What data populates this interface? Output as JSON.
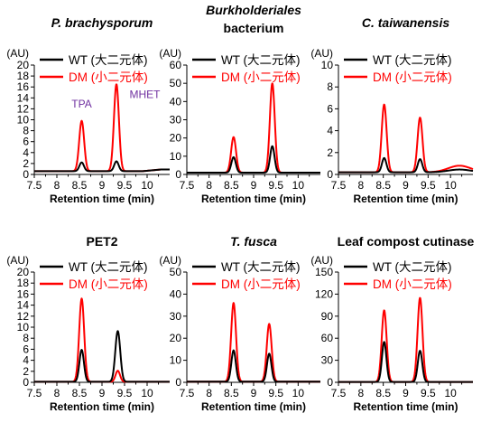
{
  "chart_data": [
    {
      "type": "line",
      "title": "P. brachysporum",
      "title_italic": true,
      "ylabel": "(AU)",
      "xlabel": "Retention time (min)",
      "xlim": [
        7.5,
        10.5
      ],
      "xticks": [
        "7.5",
        "8",
        "8.5",
        "9",
        "9.5",
        "10"
      ],
      "ylim": [
        0,
        20
      ],
      "yticks": [
        "0",
        "2",
        "4",
        "6",
        "8",
        "10",
        "12",
        "14",
        "16",
        "18",
        "20"
      ],
      "legend": {
        "position": "top-right",
        "entries": [
          "WT (大二元体)",
          "DM (小二元体)"
        ]
      },
      "annotations": [
        {
          "text": "TPA",
          "x": 8.55,
          "y": 12.2
        },
        {
          "text": "MHET",
          "x": 9.95,
          "y": 14.0
        }
      ],
      "series": [
        {
          "name": "WT (大二元体)",
          "color": "#000000",
          "baseline": 0.6,
          "tail": 0.9,
          "peaks": [
            [
              8.55,
              2.2,
              0.05
            ],
            [
              9.32,
              2.4,
              0.05
            ]
          ]
        },
        {
          "name": "DM (小二元体)",
          "color": "#ff0000",
          "baseline": 0.6,
          "tail": 0.9,
          "peaks": [
            [
              8.55,
              9.8,
              0.055
            ],
            [
              9.32,
              16.5,
              0.055
            ]
          ]
        }
      ]
    },
    {
      "type": "line",
      "title": "Burkholderiales",
      "title_line2": "bacterium",
      "title_italic": true,
      "title_line2_italic": false,
      "ylabel": "(AU)",
      "xlabel": "Retention time (min)",
      "xlim": [
        7.5,
        10.5
      ],
      "xticks": [
        "7.5",
        "8",
        "8.5",
        "9",
        "9.5",
        "10"
      ],
      "ylim": [
        0,
        60
      ],
      "yticks": [
        "0",
        "10",
        "20",
        "30",
        "40",
        "50",
        "60"
      ],
      "legend": {
        "position": "top-right",
        "entries": [
          "WT (大二元体)",
          "DM (小二元体)"
        ]
      },
      "series": [
        {
          "name": "WT (大二元体)",
          "color": "#000000",
          "baseline": 1.0,
          "tail": 1.0,
          "peaks": [
            [
              8.55,
              9.5,
              0.05
            ],
            [
              9.42,
              15.5,
              0.05
            ]
          ]
        },
        {
          "name": "DM (小二元体)",
          "color": "#ff0000",
          "baseline": 1.0,
          "tail": 1.0,
          "peaks": [
            [
              8.55,
              20.5,
              0.055
            ],
            [
              9.42,
              50.0,
              0.055
            ]
          ]
        }
      ]
    },
    {
      "type": "line",
      "title": "C. taiwanensis",
      "title_italic": true,
      "ylabel": "(AU)",
      "xlabel": "Retention time (min)",
      "xlim": [
        7.5,
        10.5
      ],
      "xticks": [
        "7.5",
        "8",
        "8.5",
        "9",
        "9.5",
        "10"
      ],
      "ylim": [
        0,
        10
      ],
      "yticks": [
        "0",
        "2",
        "4",
        "6",
        "8",
        "10"
      ],
      "legend": {
        "position": "top-right",
        "entries": [
          "WT (大二元体)",
          "DM (小二元体)"
        ]
      },
      "series": [
        {
          "name": "WT (大二元体)",
          "color": "#000000",
          "baseline": 0.2,
          "tail": 0.2,
          "bump": [
            10.2,
            0.25,
            0.25
          ],
          "peaks": [
            [
              8.52,
              1.5,
              0.05
            ],
            [
              9.32,
              1.4,
              0.05
            ]
          ]
        },
        {
          "name": "DM (小二元体)",
          "color": "#ff0000",
          "baseline": 0.2,
          "tail": 0.2,
          "bump": [
            10.2,
            0.6,
            0.25
          ],
          "peaks": [
            [
              8.52,
              6.4,
              0.055
            ],
            [
              9.32,
              5.2,
              0.055
            ]
          ]
        }
      ]
    },
    {
      "type": "line",
      "title": "PET2",
      "title_italic": false,
      "ylabel": "(AU)",
      "xlabel": "Retention time (min)",
      "xlim": [
        7.5,
        10.5
      ],
      "xticks": [
        "7.5",
        "8",
        "8.5",
        "9",
        "9.5",
        "10"
      ],
      "ylim": [
        0,
        20
      ],
      "yticks": [
        "0",
        "2",
        "4",
        "6",
        "8",
        "10",
        "12",
        "14",
        "16",
        "18",
        "20"
      ],
      "legend": {
        "position": "top-right",
        "entries": [
          "WT (大二元体)",
          "DM (小二元体)"
        ]
      },
      "series": [
        {
          "name": "WT (大二元体)",
          "color": "#000000",
          "baseline": 0.1,
          "tail": 0.1,
          "peaks": [
            [
              8.55,
              5.9,
              0.05
            ],
            [
              9.35,
              9.3,
              0.055
            ]
          ]
        },
        {
          "name": "DM (小二元体)",
          "color": "#ff0000",
          "baseline": 0.1,
          "tail": 0.1,
          "peaks": [
            [
              8.55,
              15.2,
              0.055
            ],
            [
              9.35,
              2.1,
              0.05
            ]
          ]
        }
      ]
    },
    {
      "type": "line",
      "title": "T. fusca",
      "title_italic": true,
      "ylabel": "(AU)",
      "xlabel": "Retention time (min)",
      "xlim": [
        7.5,
        10.5
      ],
      "xticks": [
        "7.5",
        "8",
        "8.5",
        "9",
        "9.5",
        "10"
      ],
      "ylim": [
        0,
        50
      ],
      "yticks": [
        "0",
        "10",
        "20",
        "30",
        "40",
        "50"
      ],
      "legend": {
        "position": "top-right",
        "entries": [
          "WT (大二元体)",
          "DM (小二元体)"
        ]
      },
      "series": [
        {
          "name": "WT (大二元体)",
          "color": "#000000",
          "baseline": 0.3,
          "tail": 0.3,
          "peaks": [
            [
              8.55,
              14.5,
              0.05
            ],
            [
              9.35,
              13.0,
              0.05
            ]
          ]
        },
        {
          "name": "DM (小二元体)",
          "color": "#ff0000",
          "baseline": 0.3,
          "tail": 0.3,
          "peaks": [
            [
              8.55,
              36.0,
              0.055
            ],
            [
              9.35,
              26.5,
              0.055
            ]
          ]
        }
      ]
    },
    {
      "type": "line",
      "title": "Leaf compost cutinase",
      "title_italic": false,
      "ylabel": "(AU)",
      "xlabel": "Retention time (min)",
      "xlim": [
        7.5,
        10.5
      ],
      "xticks": [
        "7.5",
        "8",
        "8.5",
        "9",
        "9.5",
        "10"
      ],
      "ylim": [
        0,
        150
      ],
      "yticks": [
        "0",
        "30",
        "60",
        "90",
        "120",
        "150"
      ],
      "legend": {
        "position": "top-right",
        "entries": [
          "WT (大二元体)",
          "DM (小二元体)"
        ]
      },
      "series": [
        {
          "name": "WT (大二元体)",
          "color": "#000000",
          "baseline": 0.5,
          "tail": 0.5,
          "peaks": [
            [
              8.52,
              55.0,
              0.05
            ],
            [
              9.32,
              43.0,
              0.05
            ]
          ]
        },
        {
          "name": "DM (小二元体)",
          "color": "#ff0000",
          "baseline": 0.5,
          "tail": 0.5,
          "peaks": [
            [
              8.52,
              98.0,
              0.055
            ],
            [
              9.32,
              115.0,
              0.055
            ]
          ]
        }
      ]
    }
  ]
}
